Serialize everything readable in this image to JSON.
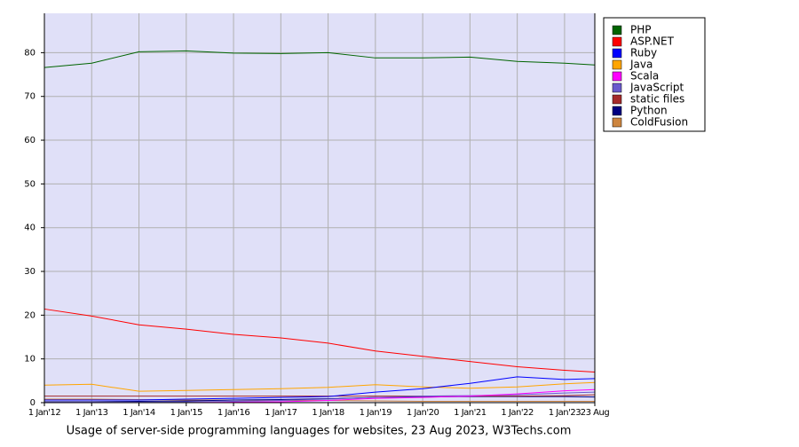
{
  "chart_data": {
    "type": "line",
    "title": "Usage of server-side programming languages for websites, 23 Aug 2023, W3Techs.com",
    "x": [
      2012,
      2013,
      2014,
      2015,
      2016,
      2017,
      2018,
      2019,
      2020,
      2021,
      2022,
      2023,
      2023.64
    ],
    "xlim": [
      2012,
      2023.64
    ],
    "xticks": [
      {
        "value": 2012,
        "label": "1 Jan'12"
      },
      {
        "value": 2013,
        "label": "1 Jan'13"
      },
      {
        "value": 2014,
        "label": "1 Jan'14"
      },
      {
        "value": 2015,
        "label": "1 Jan'15"
      },
      {
        "value": 2016,
        "label": "1 Jan'16"
      },
      {
        "value": 2017,
        "label": "1 Jan'17"
      },
      {
        "value": 2018,
        "label": "1 Jan'18"
      },
      {
        "value": 2019,
        "label": "1 Jan'19"
      },
      {
        "value": 2020,
        "label": "1 Jan'20"
      },
      {
        "value": 2021,
        "label": "1 Jan'21"
      },
      {
        "value": 2022,
        "label": "1 Jan'22"
      },
      {
        "value": 2023,
        "label": "1 Jan'23"
      },
      {
        "value": 2023.64,
        "label": "23 Aug"
      }
    ],
    "ylim": [
      0,
      89
    ],
    "yticks": [
      0,
      10,
      20,
      30,
      40,
      50,
      60,
      70,
      80
    ],
    "grid": true,
    "legend": "right",
    "series": [
      {
        "name": "PHP",
        "color": "#006400",
        "values": [
          76.6,
          77.6,
          80.2,
          80.4,
          79.9,
          79.8,
          80.0,
          78.8,
          78.8,
          79.0,
          78.0,
          77.6,
          77.2
        ]
      },
      {
        "name": "ASP.NET",
        "color": "#ff0000",
        "values": [
          21.4,
          19.8,
          17.8,
          16.8,
          15.6,
          14.8,
          13.6,
          11.8,
          10.6,
          9.4,
          8.2,
          7.4,
          7.0
        ]
      },
      {
        "name": "Ruby",
        "color": "#0000ff",
        "values": [
          0.6,
          0.6,
          0.6,
          0.8,
          1.0,
          1.2,
          1.4,
          2.4,
          3.2,
          4.4,
          5.9,
          5.3,
          5.5
        ]
      },
      {
        "name": "Java",
        "color": "#ffa500",
        "values": [
          4.0,
          4.2,
          2.6,
          2.8,
          3.0,
          3.2,
          3.5,
          4.1,
          3.6,
          3.3,
          3.6,
          4.3,
          4.6
        ]
      },
      {
        "name": "Scala",
        "color": "#ff00ff",
        "values": [
          0,
          0,
          0,
          0,
          0.1,
          0.2,
          0.5,
          1.0,
          1.2,
          1.5,
          2.0,
          2.7,
          3.0
        ]
      },
      {
        "name": "JavaScript",
        "color": "#6a5acd",
        "values": [
          0.1,
          0.1,
          0.1,
          0.2,
          0.3,
          0.5,
          0.8,
          1.2,
          1.5,
          1.6,
          1.8,
          2.2,
          2.4
        ]
      },
      {
        "name": "static files",
        "color": "#a52a2a",
        "values": [
          1.5,
          1.5,
          1.5,
          1.5,
          1.5,
          1.5,
          1.5,
          1.5,
          1.5,
          1.5,
          1.5,
          1.6,
          1.8
        ]
      },
      {
        "name": "Python",
        "color": "#000080",
        "values": [
          0.2,
          0.2,
          0.3,
          0.4,
          0.6,
          0.7,
          0.9,
          1.2,
          1.3,
          1.4,
          1.4,
          1.4,
          1.3
        ]
      },
      {
        "name": "ColdFusion",
        "color": "#cd853f",
        "values": [
          0.8,
          0.8,
          0.7,
          0.6,
          0.6,
          0.5,
          0.5,
          0.4,
          0.3,
          0.3,
          0.3,
          0.3,
          0.3
        ]
      }
    ]
  }
}
